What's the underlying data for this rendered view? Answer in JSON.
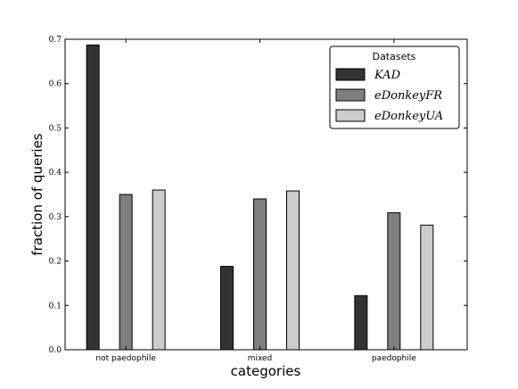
{
  "chart_data": {
    "type": "bar",
    "categories": [
      "not paedophile",
      "mixed",
      "paedophile"
    ],
    "series": [
      {
        "name": "KAD",
        "values": [
          0.687,
          0.188,
          0.122
        ],
        "color": "#333333"
      },
      {
        "name": "eDonkeyFR",
        "values": [
          0.35,
          0.34,
          0.309
        ],
        "color": "#7f7f7f"
      },
      {
        "name": "eDonkeyUA",
        "values": [
          0.36,
          0.358,
          0.281
        ],
        "color": "#cccccc"
      }
    ],
    "xlabel": "categories",
    "ylabel": "fraction of queries",
    "ylim": [
      0,
      0.7
    ],
    "yticks": [
      "0.0",
      "0.1",
      "0.2",
      "0.3",
      "0.4",
      "0.5",
      "0.6",
      "0.7"
    ],
    "legend": {
      "title": "Datasets",
      "placement": "top-right"
    },
    "grid": false
  }
}
